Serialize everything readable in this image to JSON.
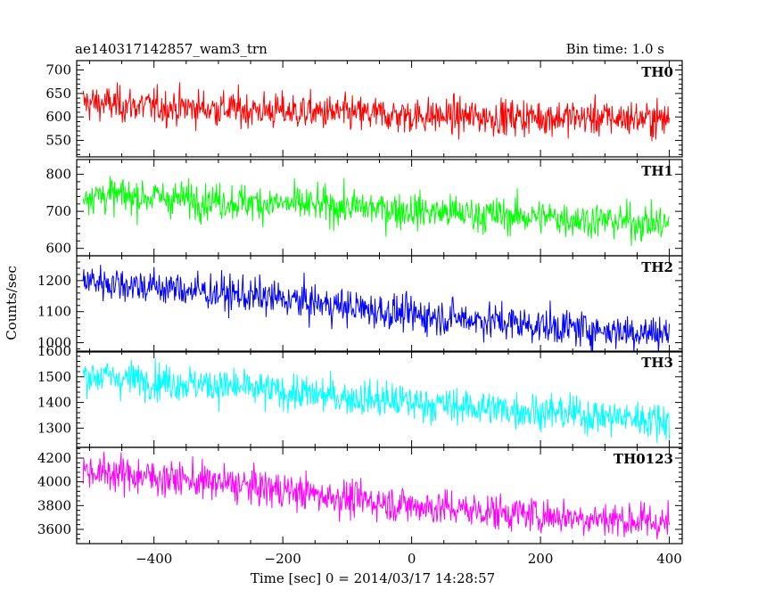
{
  "header": {
    "title": "ae140317142857_wam3_trn",
    "bin_time": "Bin time: 1.0 s"
  },
  "chart_data": {
    "type": "line",
    "title": "ae140317142857_wam3_trn",
    "xlabel": "Time [sec] 0 = 2014/03/17 14:28:57",
    "ylabel": "Counts/sec",
    "xlim": [
      -520,
      420
    ],
    "x_ticks": [
      -400,
      -200,
      0,
      200,
      400
    ],
    "x_range_data": [
      -510,
      400
    ],
    "bin_time_s": 1.0,
    "panels": [
      {
        "name": "TH0",
        "color": "#ff0000",
        "ylim": [
          515,
          720
        ],
        "y_ticks": [
          550,
          600,
          650,
          700
        ],
        "trend_x": [
          -500,
          -400,
          -300,
          -200,
          -100,
          0,
          100,
          200,
          300,
          400
        ],
        "trend_y": [
          630,
          622,
          618,
          612,
          607,
          603,
          600,
          600,
          598,
          595
        ]
      },
      {
        "name": "TH1",
        "color": "#00ff00",
        "ylim": [
          580,
          840
        ],
        "y_ticks": [
          600,
          700,
          800
        ],
        "trend_x": [
          -500,
          -400,
          -300,
          -200,
          -100,
          0,
          100,
          200,
          300,
          400
        ],
        "trend_y": [
          745,
          738,
          728,
          720,
          712,
          702,
          692,
          685,
          675,
          665
        ]
      },
      {
        "name": "TH2",
        "color": "#0000ff",
        "ylim": [
          970,
          1280
        ],
        "y_ticks": [
          1000,
          1100,
          1200
        ],
        "trend_x": [
          -500,
          -400,
          -300,
          -200,
          -100,
          0,
          100,
          200,
          300,
          400
        ],
        "trend_y": [
          1200,
          1180,
          1160,
          1140,
          1115,
          1090,
          1075,
          1055,
          1040,
          1030
        ]
      },
      {
        "name": "TH3",
        "color": "#00ffff",
        "ylim": [
          1225,
          1600
        ],
        "y_ticks": [
          1300,
          1400,
          1500,
          1600
        ],
        "trend_x": [
          -500,
          -400,
          -300,
          -200,
          -100,
          0,
          100,
          200,
          300,
          400
        ],
        "trend_y": [
          1505,
          1485,
          1465,
          1440,
          1420,
          1400,
          1380,
          1365,
          1345,
          1330
        ]
      },
      {
        "name": "TH0123",
        "color": "#ff00ff",
        "ylim": [
          3480,
          4290
        ],
        "y_ticks": [
          3600,
          3800,
          4000,
          4200
        ],
        "trend_x": [
          -500,
          -400,
          -300,
          -200,
          -100,
          0,
          100,
          200,
          300,
          400
        ],
        "trend_y": [
          4090,
          4040,
          3990,
          3930,
          3860,
          3800,
          3760,
          3720,
          3690,
          3650
        ]
      }
    ]
  }
}
